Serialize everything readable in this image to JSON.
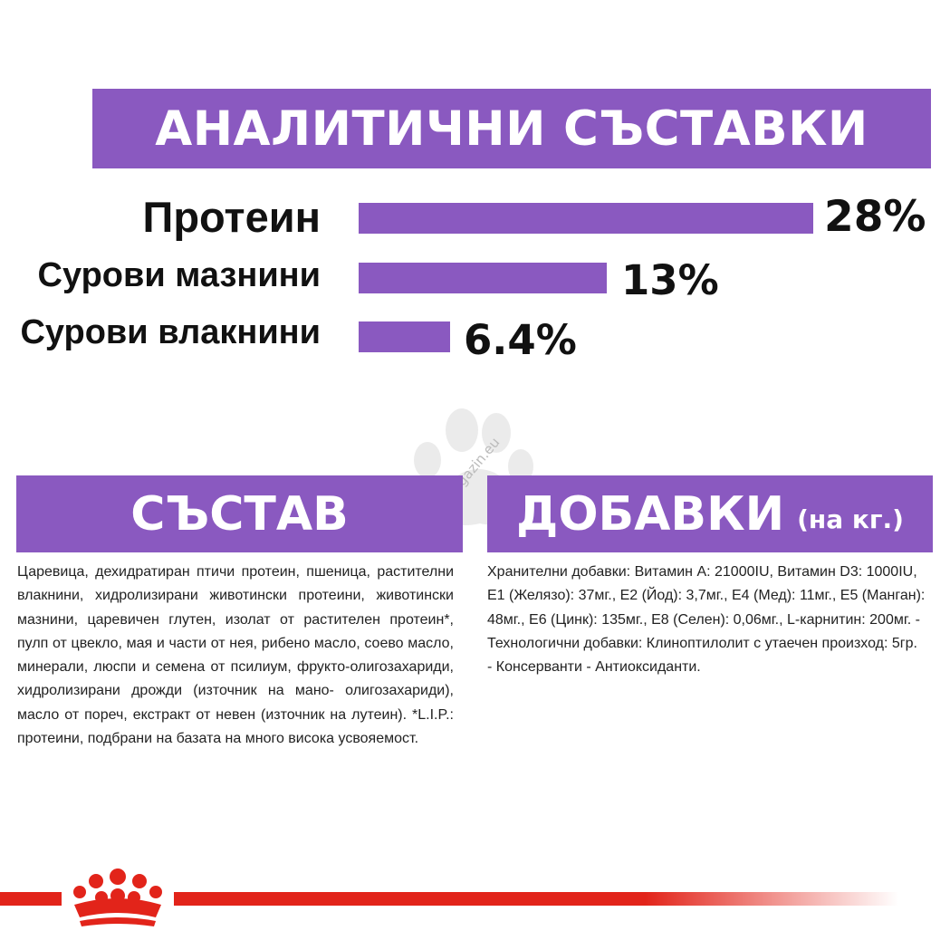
{
  "analytics": {
    "title": "АНАЛИТИЧНИ СЪСТАВКИ",
    "rows": [
      {
        "label": "Протеин",
        "value_text": "28%",
        "value": 28
      },
      {
        "label": "Сурови мазнини",
        "value_text": "13%",
        "value": 13
      },
      {
        "label": "Сурови влакнини",
        "value_text": "6.4%",
        "value": 6.4
      }
    ]
  },
  "composition": {
    "title": "СЪСТАВ",
    "text": "Царевица, дехидратиран птичи протеин, пшеница, растителни влакнини, хидролизирани животински протеини, животински мазнини, царевичен глутен, изолат от растителен протеин*, пулп от цвекло, мая и части от нея, рибено масло, соево масло, минерали, люспи и семена от псилиум, фрукто-олигозахариди, хидролизирани дрожди (източник на мано- олигозахариди), масло от пореч, екстракт от невен (източник на лутеин). *L.I.P.: протеини, подбрани на базата на много висока усвояемост."
  },
  "additives": {
    "title": "ДОБАВКИ",
    "subtitle": "(на кг.)",
    "text": "Хранителни добавки: Витамин А: 21000IU, Витамин D3: 1000IU, Е1 (Желязо): 37мг., Е2 (Йод): 3,7мг., Е4 (Мед): 11мг., Е5 (Манган): 48мг., Е6 (Цинк): 135мг., Е8 (Селен): 0,06мг., L-карнитин: 200мг. - Технологични добавки: Клиноптилолит с утаечен произход: 5гр. - Консерванти - Антиоксиданти."
  },
  "watermark": {
    "text": "zoomagazin.eu",
    "icon": "paw-icon"
  },
  "brand": {
    "icon": "royal-canin-crown-icon"
  },
  "colors": {
    "accent": "#8a59c0",
    "brand_red": "#e2241a"
  }
}
